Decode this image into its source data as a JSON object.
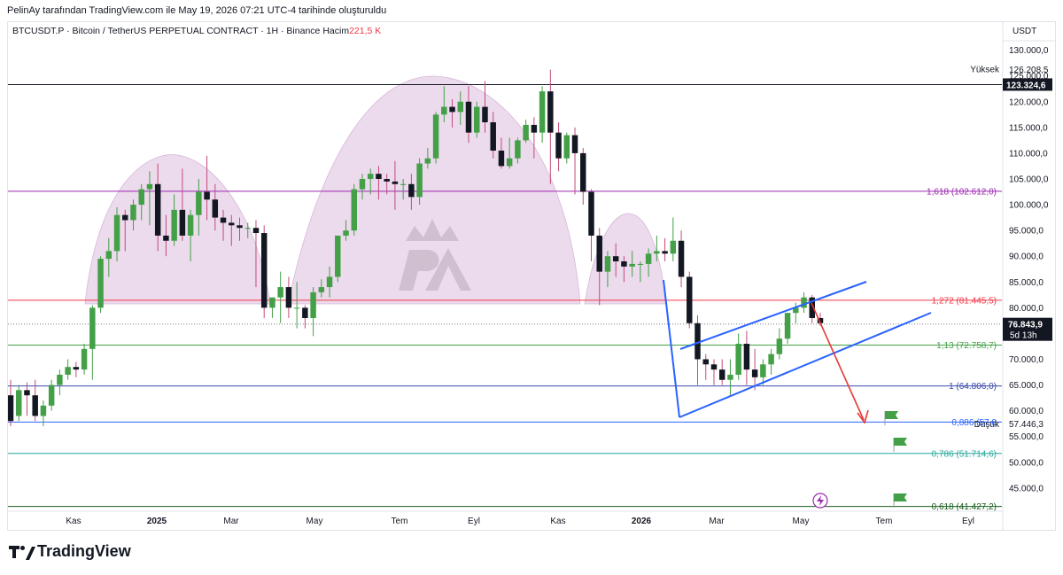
{
  "header": {
    "caption": "PelinAy tarafından TradingView.com ile May 19, 2026 07:21 UTC-4 tarihinde oluşturuldu"
  },
  "legend": {
    "symbol": "BTCUSDT.P · Bitcoin / TetherUS PERPETUAL CONTRACT · 1H · Binance",
    "volume_label": "Hacim",
    "volume_value": "221,5 K"
  },
  "footer": {
    "brand": "TradingView"
  },
  "colors": {
    "up": "#43a047",
    "down": "#131722",
    "dome": "#e9d3ea",
    "channel": "#2962ff",
    "arrow": "#e53935"
  },
  "chart_data": {
    "type": "candlestick",
    "currency_label": "USDT",
    "ylim": [
      40500,
      132000
    ],
    "y_ticks": [
      "45.000,0",
      "50.000,0",
      "55.000,0",
      "60.000,0",
      "65.000,0",
      "70.000,0",
      "75.000,0",
      "80.000,0",
      "85.000,0",
      "90.000,0",
      "95.000,0",
      "100.000,0",
      "105.000,0",
      "110.000,0",
      "115.000,0",
      "120.000,0",
      "125.000,0",
      "130.000,0"
    ],
    "x_ticks": [
      {
        "label": "Kas",
        "bold": false,
        "x": 83
      },
      {
        "label": "2025",
        "bold": true,
        "x": 177
      },
      {
        "label": "Mar",
        "bold": false,
        "x": 261
      },
      {
        "label": "May",
        "bold": false,
        "x": 355
      },
      {
        "label": "Tem",
        "bold": false,
        "x": 451
      },
      {
        "label": "Eyl",
        "bold": false,
        "x": 535
      },
      {
        "label": "Kas",
        "bold": false,
        "x": 630
      },
      {
        "label": "2026",
        "bold": true,
        "x": 724
      },
      {
        "label": "Mar",
        "bold": false,
        "x": 809
      },
      {
        "label": "May",
        "bold": false,
        "x": 904
      },
      {
        "label": "Tem",
        "bold": false,
        "x": 998
      },
      {
        "label": "Eyl",
        "bold": false,
        "x": 1093
      }
    ],
    "levels": [
      {
        "label": "1,618 (102.612,0)",
        "value": 102612,
        "color": "#9c27b0"
      },
      {
        "label": "1,272 (81.445,5)",
        "value": 81445.5,
        "color": "#f23645"
      },
      {
        "label": "1,13 (72.758,7)",
        "value": 72758.7,
        "color": "#43a047"
      },
      {
        "label": "1 (64.806,0)",
        "value": 64806,
        "color": "#3949ab"
      },
      {
        "label": "0,886 (57.8",
        "value": 57800,
        "color": "#2962ff"
      },
      {
        "label": "0,786 (51.714,6)",
        "value": 51714.6,
        "color": "#26a69a"
      },
      {
        "label": "0,618 (41.427,2)",
        "value": 41427.2,
        "color": "#1b5e20"
      }
    ],
    "price_labels": {
      "high_label": "Yüksek",
      "high_value": "126.208,5",
      "line_value": "123.324,6",
      "current_value": "76.843,9",
      "countdown": "5d 13h",
      "low_label": "Düşük",
      "low_value": "57.446,3"
    },
    "weeks": [
      {
        "o": 63000,
        "h": 66000,
        "c": 58000,
        "l": 57000
      },
      {
        "o": 59000,
        "h": 65000,
        "c": 64000,
        "l": 58000
      },
      {
        "o": 64000,
        "h": 65500,
        "c": 63000,
        "l": 59000
      },
      {
        "o": 63000,
        "h": 66000,
        "c": 59000,
        "l": 58000
      },
      {
        "o": 59000,
        "h": 62000,
        "c": 61000,
        "l": 57000
      },
      {
        "o": 61000,
        "h": 66000,
        "c": 65000,
        "l": 60000
      },
      {
        "o": 65000,
        "h": 68000,
        "c": 67000,
        "l": 63000
      },
      {
        "o": 67000,
        "h": 70000,
        "c": 68500,
        "l": 66000
      },
      {
        "o": 68500,
        "h": 69500,
        "c": 68000,
        "l": 66500
      },
      {
        "o": 68000,
        "h": 73000,
        "c": 72000,
        "l": 67000
      },
      {
        "o": 72000,
        "h": 80500,
        "c": 80000,
        "l": 66000
      },
      {
        "o": 80000,
        "h": 90000,
        "c": 89500,
        "l": 79000
      },
      {
        "o": 89500,
        "h": 93500,
        "c": 91000,
        "l": 86000
      },
      {
        "o": 91000,
        "h": 99500,
        "c": 98000,
        "l": 89000
      },
      {
        "o": 98000,
        "h": 99000,
        "c": 97000,
        "l": 91000
      },
      {
        "o": 97000,
        "h": 101000,
        "c": 100000,
        "l": 95000
      },
      {
        "o": 100000,
        "h": 104000,
        "c": 103000,
        "l": 97000
      },
      {
        "o": 103000,
        "h": 106500,
        "c": 104000,
        "l": 96000
      },
      {
        "o": 104000,
        "h": 108000,
        "c": 94000,
        "l": 91000
      },
      {
        "o": 94000,
        "h": 98000,
        "c": 93000,
        "l": 90000
      },
      {
        "o": 93000,
        "h": 102000,
        "c": 99000,
        "l": 92000
      },
      {
        "o": 99000,
        "h": 107000,
        "c": 94000,
        "l": 93000
      },
      {
        "o": 94000,
        "h": 99000,
        "c": 98000,
        "l": 89000
      },
      {
        "o": 98000,
        "h": 105000,
        "c": 102500,
        "l": 94000
      },
      {
        "o": 102500,
        "h": 109500,
        "c": 101000,
        "l": 97000
      },
      {
        "o": 101000,
        "h": 104000,
        "c": 97500,
        "l": 95000
      },
      {
        "o": 97500,
        "h": 99000,
        "c": 96500,
        "l": 93000
      },
      {
        "o": 96500,
        "h": 98000,
        "c": 96000,
        "l": 92000
      },
      {
        "o": 96000,
        "h": 97500,
        "c": 95500,
        "l": 93000
      },
      {
        "o": 95500,
        "h": 96500,
        "c": 95500,
        "l": 93500
      },
      {
        "o": 95500,
        "h": 97000,
        "c": 94500,
        "l": 84000
      },
      {
        "o": 94500,
        "h": 96000,
        "c": 80000,
        "l": 78000
      },
      {
        "o": 80000,
        "h": 82000,
        "c": 82000,
        "l": 78000
      },
      {
        "o": 82000,
        "h": 87000,
        "c": 84000,
        "l": 77000
      },
      {
        "o": 84000,
        "h": 86000,
        "c": 80000,
        "l": 78000
      },
      {
        "o": 80000,
        "h": 85000,
        "c": 80000,
        "l": 76000
      },
      {
        "o": 80000,
        "h": 80500,
        "c": 78000,
        "l": 76000
      },
      {
        "o": 78000,
        "h": 84000,
        "c": 83000,
        "l": 74500
      },
      {
        "o": 83000,
        "h": 85500,
        "c": 84000,
        "l": 82000
      },
      {
        "o": 84000,
        "h": 88000,
        "c": 86000,
        "l": 82000
      },
      {
        "o": 86000,
        "h": 94000,
        "c": 94000,
        "l": 85000
      },
      {
        "o": 94000,
        "h": 97000,
        "c": 95000,
        "l": 93000
      },
      {
        "o": 95000,
        "h": 104000,
        "c": 103000,
        "l": 94000
      },
      {
        "o": 103000,
        "h": 106000,
        "c": 105000,
        "l": 101000
      },
      {
        "o": 105000,
        "h": 107000,
        "c": 106000,
        "l": 102000
      },
      {
        "o": 106000,
        "h": 107500,
        "c": 105000,
        "l": 101000
      },
      {
        "o": 105000,
        "h": 106000,
        "c": 104500,
        "l": 102000
      },
      {
        "o": 104500,
        "h": 108500,
        "c": 104000,
        "l": 99000
      },
      {
        "o": 104000,
        "h": 105000,
        "c": 104000,
        "l": 101000
      },
      {
        "o": 104000,
        "h": 106000,
        "c": 101500,
        "l": 99000
      },
      {
        "o": 101500,
        "h": 109000,
        "c": 108000,
        "l": 100000
      },
      {
        "o": 108000,
        "h": 111000,
        "c": 109000,
        "l": 107000
      },
      {
        "o": 109000,
        "h": 118000,
        "c": 117500,
        "l": 108000
      },
      {
        "o": 117500,
        "h": 123000,
        "c": 119000,
        "l": 116000
      },
      {
        "o": 119000,
        "h": 120500,
        "c": 118000,
        "l": 115000
      },
      {
        "o": 118000,
        "h": 122000,
        "c": 120000,
        "l": 115500
      },
      {
        "o": 120000,
        "h": 123000,
        "c": 114000,
        "l": 112000
      },
      {
        "o": 114000,
        "h": 120000,
        "c": 119000,
        "l": 113000
      },
      {
        "o": 119000,
        "h": 124000,
        "c": 116000,
        "l": 114000
      },
      {
        "o": 116000,
        "h": 118000,
        "c": 110500,
        "l": 109000
      },
      {
        "o": 110500,
        "h": 113000,
        "c": 107500,
        "l": 107000
      },
      {
        "o": 107500,
        "h": 113000,
        "c": 109000,
        "l": 107000
      },
      {
        "o": 109000,
        "h": 113000,
        "c": 112500,
        "l": 108000
      },
      {
        "o": 112500,
        "h": 116500,
        "c": 115500,
        "l": 112000
      },
      {
        "o": 115500,
        "h": 117000,
        "c": 114000,
        "l": 109000
      },
      {
        "o": 114000,
        "h": 123000,
        "c": 122000,
        "l": 112000
      },
      {
        "o": 122000,
        "h": 126208,
        "c": 114000,
        "l": 104000
      },
      {
        "o": 114000,
        "h": 116000,
        "c": 109000,
        "l": 106500
      },
      {
        "o": 109000,
        "h": 114000,
        "c": 113500,
        "l": 108000
      },
      {
        "o": 113500,
        "h": 115000,
        "c": 110000,
        "l": 102000
      },
      {
        "o": 110000,
        "h": 111000,
        "c": 102500,
        "l": 100000
      },
      {
        "o": 102500,
        "h": 103000,
        "c": 94000,
        "l": 89000
      },
      {
        "o": 94000,
        "h": 95500,
        "c": 87000,
        "l": 80500
      },
      {
        "o": 87000,
        "h": 91000,
        "c": 90000,
        "l": 84000
      },
      {
        "o": 90000,
        "h": 92500,
        "c": 89000,
        "l": 86000
      },
      {
        "o": 89000,
        "h": 90000,
        "c": 88000,
        "l": 85000
      },
      {
        "o": 88000,
        "h": 91000,
        "c": 88500,
        "l": 86000
      },
      {
        "o": 88500,
        "h": 89000,
        "c": 88500,
        "l": 85000
      },
      {
        "o": 88500,
        "h": 91500,
        "c": 90500,
        "l": 86000
      },
      {
        "o": 90500,
        "h": 94000,
        "c": 91000,
        "l": 89000
      },
      {
        "o": 91000,
        "h": 93500,
        "c": 90500,
        "l": 89000
      },
      {
        "o": 90500,
        "h": 97500,
        "c": 93000,
        "l": 89000
      },
      {
        "o": 93000,
        "h": 95000,
        "c": 86000,
        "l": 84000
      },
      {
        "o": 86000,
        "h": 87000,
        "c": 77000,
        "l": 76000
      },
      {
        "o": 77000,
        "h": 78500,
        "c": 70000,
        "l": 65000
      },
      {
        "o": 70000,
        "h": 71000,
        "c": 69000,
        "l": 66000
      },
      {
        "o": 69000,
        "h": 70000,
        "c": 68000,
        "l": 65000
      },
      {
        "o": 68000,
        "h": 70000,
        "c": 66000,
        "l": 65000
      },
      {
        "o": 66000,
        "h": 70000,
        "c": 67000,
        "l": 63000
      },
      {
        "o": 67000,
        "h": 75000,
        "c": 73000,
        "l": 66000
      },
      {
        "o": 73000,
        "h": 75500,
        "c": 68000,
        "l": 65000
      },
      {
        "o": 68000,
        "h": 72000,
        "c": 66500,
        "l": 64000
      },
      {
        "o": 66500,
        "h": 70000,
        "c": 69000,
        "l": 65000
      },
      {
        "o": 69000,
        "h": 72000,
        "c": 71000,
        "l": 67000
      },
      {
        "o": 71000,
        "h": 76000,
        "c": 74000,
        "l": 70000
      },
      {
        "o": 74000,
        "h": 79000,
        "c": 79000,
        "l": 73000
      },
      {
        "o": 79000,
        "h": 81000,
        "c": 80000,
        "l": 77000
      },
      {
        "o": 80000,
        "h": 83000,
        "c": 82000,
        "l": 79000
      },
      {
        "o": 82000,
        "h": 82500,
        "c": 78000,
        "l": 77000
      },
      {
        "o": 78000,
        "h": 79000,
        "c": 77000,
        "l": 76500
      }
    ]
  }
}
